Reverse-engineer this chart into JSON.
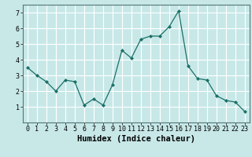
{
  "x": [
    0,
    1,
    2,
    3,
    4,
    5,
    6,
    7,
    8,
    9,
    10,
    11,
    12,
    13,
    14,
    15,
    16,
    17,
    18,
    19,
    20,
    21,
    22,
    23
  ],
  "y": [
    3.5,
    3.0,
    2.6,
    2.0,
    2.7,
    2.6,
    1.1,
    1.5,
    1.1,
    2.4,
    4.6,
    4.1,
    5.3,
    5.5,
    5.5,
    6.1,
    7.1,
    3.6,
    2.8,
    2.7,
    1.7,
    1.4,
    1.3,
    0.7
  ],
  "line_color": "#1a7068",
  "marker": "D",
  "marker_size": 2,
  "bg_color": "#c8e8e8",
  "grid_color": "#ffffff",
  "xlabel": "Humidex (Indice chaleur)",
  "xlim": [
    -0.5,
    23.5
  ],
  "ylim": [
    0,
    7.5
  ],
  "yticks": [
    1,
    2,
    3,
    4,
    5,
    6,
    7
  ],
  "xticks": [
    0,
    1,
    2,
    3,
    4,
    5,
    6,
    7,
    8,
    9,
    10,
    11,
    12,
    13,
    14,
    15,
    16,
    17,
    18,
    19,
    20,
    21,
    22,
    23
  ],
  "tick_labelsize": 6,
  "xlabel_fontsize": 7.5,
  "linewidth": 0.9
}
